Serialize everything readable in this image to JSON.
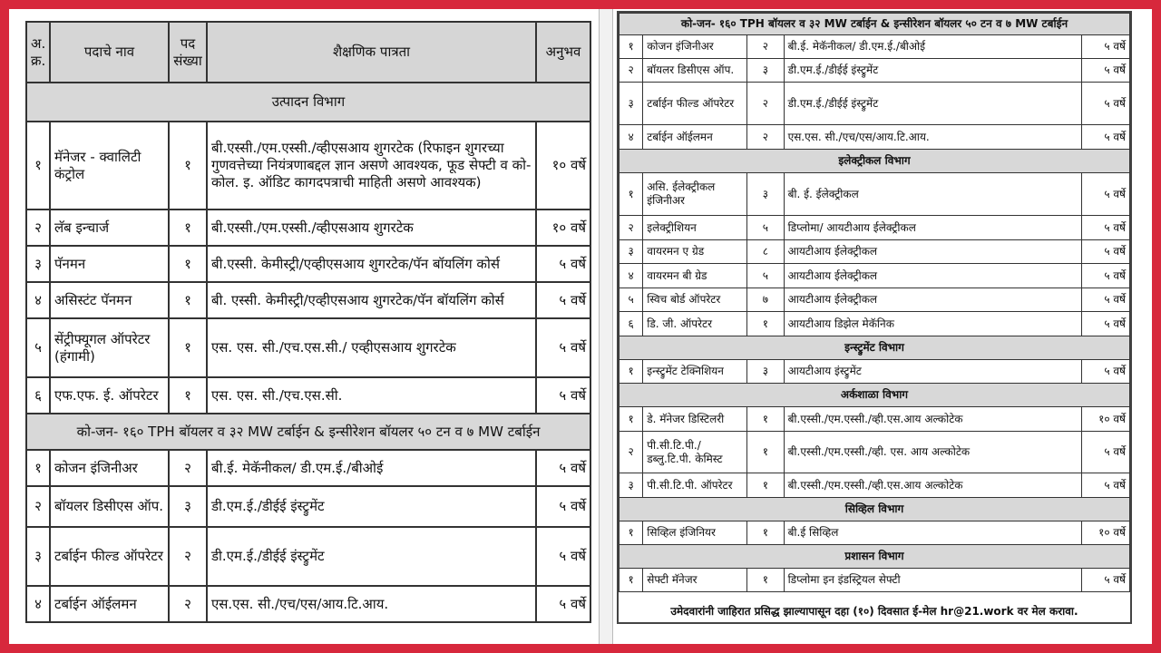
{
  "colors": {
    "frame": "#d7283c",
    "section_bg": "#d8d8d8"
  },
  "left": {
    "header": {
      "sr": "अ. क्र.",
      "name": "पदाचे नाव",
      "count": "पद संख्या",
      "qual": "शैक्षणिक पात्रता",
      "exp": "अनुभव"
    },
    "rows": [
      {
        "section": "उत्पादन विभाग"
      },
      {
        "sr": "१",
        "name": "मॅनेजर - क्वालिटी कंट्रोल",
        "count": "१",
        "qual": "बी.एस्सी./एम.एस्सी./व्हीएसआय शुगरटेक (रिफाइन शुगरच्या गुणवत्तेच्या नियंत्रणाबद्दल ज्ञान असणे आवश्यक, फूड सेफ्टी व को-कोल. इ. ऑडिट कागदपत्राची माहिती असणे आवश्यक)",
        "exp": "१० वर्षे"
      },
      {
        "sr": "२",
        "name": "लॅब इन्चार्ज",
        "count": "१",
        "qual": "बी.एस्सी./एम.एस्सी./व्हीएसआय शुगरटेक",
        "exp": "१० वर्षे"
      },
      {
        "sr": "३",
        "name": "पॅनमन",
        "count": "१",
        "qual": "बी.एस्सी. केमीस्ट्री/एव्हीएसआय शुगरटेक/पॅन बॉयलिंग कोर्स",
        "exp": "५ वर्षे"
      },
      {
        "sr": "४",
        "name": "असिस्टंट पॅनमन",
        "count": "१",
        "qual": "बी. एस्सी. केमीस्ट्री/एव्हीएसआय शुगरटेक/पॅन बॉयलिंग कोर्स",
        "exp": "५ वर्षे"
      },
      {
        "sr": "५",
        "name": "सेंट्रीफ्यूगल ऑपरेटर (हंगामी)",
        "count": "१",
        "qual": "एस. एस. सी./एच.एस.सी./ एव्हीएसआय शुगरटेक",
        "exp": "५ वर्षे"
      },
      {
        "sr": "६",
        "name": "एफ.एफ. ई. ऑपरेटर",
        "count": "१",
        "qual": "एस. एस. सी./एच.एस.सी.",
        "exp": "५ वर्षे"
      },
      {
        "section": "को-जन- १६० TPH बॉयलर व ३२ MW टर्बाईन & इन्सीरेशन बॉयलर ५० टन व ७ MW टर्बाईन"
      },
      {
        "sr": "१",
        "name": "कोजन इंजिनीअर",
        "count": "२",
        "qual": "बी.ई. मेकॅनीकल/ डी.एम.ई./बीओई",
        "exp": "५ वर्षे"
      },
      {
        "sr": "२",
        "name": "बॉयलर डिसीएस ऑप.",
        "count": "३",
        "qual": "डी.एम.ई./डीईई इंस्ट्रुमेंट",
        "exp": "५ वर्षे"
      },
      {
        "sr": "३",
        "name": "टर्बाईन फील्ड ऑपरेटर",
        "count": "२",
        "qual": "डी.एम.ई./डीईई इंस्ट्रुमेंट",
        "exp": "५ वर्षे"
      },
      {
        "sr": "४",
        "name": "टर्बाईन ऑईलमन",
        "count": "२",
        "qual": "एस.एस. सी./एच/एस/आय.टि.आय.",
        "exp": "५ वर्षे"
      }
    ]
  },
  "right": {
    "rows": [
      {
        "section": "को-जन- १६० TPH बॉयलर व ३२ MW टर्बाईन & इन्सीरेशन बॉयलर ५० टन व ७ MW टर्बाईन"
      },
      {
        "sr": "१",
        "name": "कोजन इंजिनीअर",
        "count": "२",
        "qual": "बी.ई. मेकॅनीकल/ डी.एम.ई./बीओई",
        "exp": "५ वर्षे"
      },
      {
        "sr": "२",
        "name": "बॉयलर डिसीएस ऑप.",
        "count": "३",
        "qual": "डी.एम.ई./डीईई इंस्ट्रुमेंट",
        "exp": "५ वर्षे"
      },
      {
        "sr": "३",
        "name": "टर्बाईन फील्ड ऑपरेटर",
        "count": "२",
        "qual": "डी.एम.ई./डीईई इंस्ट्रुमेंट",
        "exp": "५ वर्षे"
      },
      {
        "sr": "४",
        "name": "टर्बाईन ऑईलमन",
        "count": "२",
        "qual": "एस.एस. सी./एच/एस/आय.टि.आय.",
        "exp": "५ वर्षे"
      },
      {
        "section": "इलेक्ट्रीकल विभाग"
      },
      {
        "sr": "१",
        "name": "असि. ईलेक्ट्रीकल इंजिनीअर",
        "count": "३",
        "qual": "बी. ई. ईलेक्ट्रीकल",
        "exp": "५ वर्षे"
      },
      {
        "sr": "२",
        "name": "इलेक्ट्रीशियन",
        "count": "५",
        "qual": "डिप्लोमा/ आयटीआय ईलेक्ट्रीकल",
        "exp": "५ वर्षे"
      },
      {
        "sr": "३",
        "name": "वायरमन ए ग्रेड",
        "count": "८",
        "qual": "आयटीआय ईलेक्ट्रीकल",
        "exp": "५ वर्षे"
      },
      {
        "sr": "४",
        "name": "वायरमन बी ग्रेड",
        "count": "५",
        "qual": "आयटीआय ईलेक्ट्रीकल",
        "exp": "५ वर्षे"
      },
      {
        "sr": "५",
        "name": "स्विच बोर्ड ऑपरेटर",
        "count": "७",
        "qual": "आयटीआय ईलेक्ट्रीकल",
        "exp": "५ वर्षे"
      },
      {
        "sr": "६",
        "name": "डि. जी. ऑपरेटर",
        "count": "१",
        "qual": "आयटीआय डिझेल मेकॅनिक",
        "exp": "५ वर्षे"
      },
      {
        "section": "इन्स्ट्रुमेंट विभाग"
      },
      {
        "sr": "१",
        "name": "इन्स्ट्रुमेंट टेक्निशियन",
        "count": "३",
        "qual": "आयटीआय इंस्ट्रुमेंट",
        "exp": "५ वर्षे"
      },
      {
        "section": "अर्कशाळा विभाग"
      },
      {
        "sr": "१",
        "name": "डे. मॅनेजर डिस्टिलरी",
        "count": "१",
        "qual": "बी.एस्सी./एम.एस्सी./व्ही.एस.आय अल्कोटेक",
        "exp": "१० वर्षे"
      },
      {
        "sr": "२",
        "name": "पी.सी.टि.पी./ डब्लु.टि.पी. केमिस्ट",
        "count": "१",
        "qual": "बी.एस्सी./एम.एस्सी./व्ही. एस. आय अल्कोटेक",
        "exp": "५ वर्षे"
      },
      {
        "sr": "३",
        "name": "पी.सी.टि.पी. ऑपरेटर",
        "count": "१",
        "qual": "बी.एस्सी./एम.एस्सी./व्ही.एस.आय अल्कोटेक",
        "exp": "५ वर्षे"
      },
      {
        "section": "सिव्हिल विभाग"
      },
      {
        "sr": "१",
        "name": "सिव्हिल इंजिनियर",
        "count": "१",
        "qual": "बी.ई सिव्हिल",
        "exp": "१० वर्षे"
      },
      {
        "section": "प्रशासन विभाग"
      },
      {
        "sr": "१",
        "name": "सेफ्टी मॅनेजर",
        "count": "१",
        "qual": "डिप्लोमा इन इंडस्ट्रियल सेफ्टी",
        "exp": "५ वर्षे"
      }
    ],
    "footer": "उमेदवारांनी जाहिरात प्रसिद्ध झाल्यापासून दहा (१०) दिवसात  ई-मेल hr@21.work वर मेल करावा."
  }
}
